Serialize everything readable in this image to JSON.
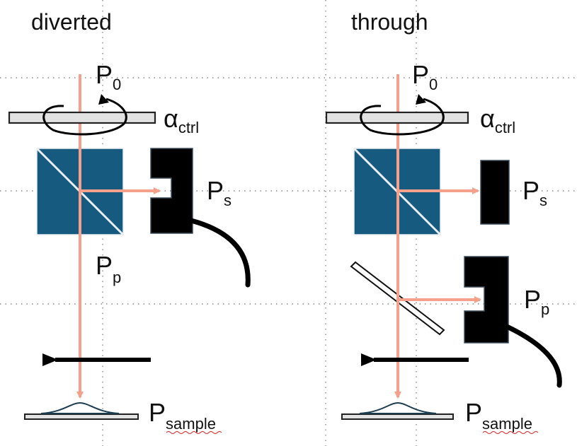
{
  "panels": {
    "diverted": {
      "title": "diverted",
      "input_power": {
        "main": "P",
        "sub": "0"
      },
      "control_angle": {
        "main": "α",
        "sub": "ctrl"
      },
      "s_power": {
        "main": "P",
        "sub": "s"
      },
      "p_power": {
        "main": "P",
        "sub": "p"
      },
      "sample_power": {
        "main": "P",
        "sub": "sample"
      }
    },
    "through": {
      "title": "through",
      "input_power": {
        "main": "P",
        "sub": "0"
      },
      "control_angle": {
        "main": "α",
        "sub": "ctrl"
      },
      "s_power": {
        "main": "P",
        "sub": "s"
      },
      "p_power": {
        "main": "P",
        "sub": "p"
      },
      "sample_power": {
        "main": "P",
        "sub": "sample"
      }
    }
  },
  "colors": {
    "beam": "#f4a08a",
    "beam_splitter_cube": "#175a80",
    "detector": "#000000",
    "optic": "#e2e2e2",
    "grid": "#8a8a8a"
  }
}
